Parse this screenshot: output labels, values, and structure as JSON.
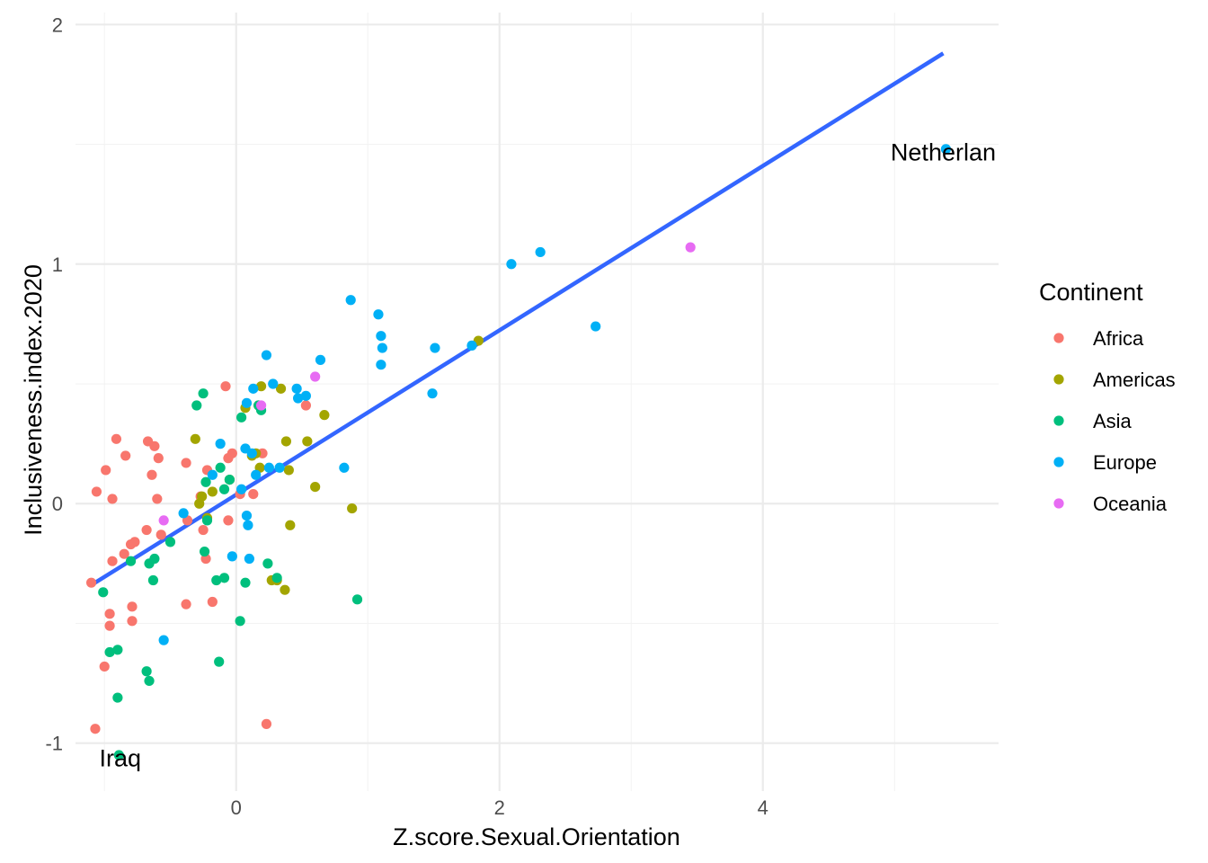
{
  "chart_data": {
    "type": "scatter",
    "title": "",
    "xlabel": "Z.score.Sexual.Orientation",
    "ylabel": "Inclusiveness.index.2020",
    "xlim": [
      -1.22,
      5.79
    ],
    "ylim": [
      -1.2,
      2.05
    ],
    "x_ticks": [
      0,
      2,
      4
    ],
    "x_tick_labels": [
      "0",
      "2",
      "4"
    ],
    "y_ticks": [
      -1,
      0,
      1,
      2
    ],
    "y_tick_labels": [
      "-1",
      "0",
      "1",
      "2"
    ],
    "grid": true,
    "legend": {
      "title": "Continent",
      "placement": "right",
      "entries": [
        "Africa",
        "Americas",
        "Asia",
        "Europe",
        "Oceania"
      ]
    },
    "colors": {
      "Africa": "#F8766D",
      "Americas": "#A3A500",
      "Asia": "#00BF7D",
      "Europe": "#00B0F6",
      "Oceania": "#E76BF3",
      "trend": "#3366FF"
    },
    "trend_line": {
      "x": [
        -1.1,
        5.37
      ],
      "y": [
        -0.34,
        1.88
      ]
    },
    "annotations": [
      {
        "text": "Netherlan",
        "x": 5.37,
        "y": 1.47
      },
      {
        "text": "Iraq",
        "x": -0.88,
        "y": -1.06
      }
    ],
    "series": [
      {
        "name": "Africa",
        "points": [
          [
            -1.1,
            -0.33
          ],
          [
            -1.07,
            -0.94
          ],
          [
            -1.06,
            0.05
          ],
          [
            -1.0,
            -0.68
          ],
          [
            -0.99,
            0.14
          ],
          [
            -0.96,
            -0.46
          ],
          [
            -0.96,
            -0.51
          ],
          [
            -0.94,
            -0.24
          ],
          [
            -0.94,
            0.02
          ],
          [
            -0.91,
            0.27
          ],
          [
            -0.85,
            -0.21
          ],
          [
            -0.84,
            0.2
          ],
          [
            -0.8,
            -0.17
          ],
          [
            -0.79,
            -0.43
          ],
          [
            -0.79,
            -0.49
          ],
          [
            -0.77,
            -0.16
          ],
          [
            -0.68,
            -0.11
          ],
          [
            -0.67,
            0.26
          ],
          [
            -0.64,
            0.12
          ],
          [
            -0.62,
            0.24
          ],
          [
            -0.6,
            0.02
          ],
          [
            -0.59,
            0.19
          ],
          [
            -0.57,
            -0.13
          ],
          [
            -0.38,
            0.17
          ],
          [
            -0.38,
            -0.42
          ],
          [
            -0.37,
            -0.07
          ],
          [
            -0.27,
            0.03
          ],
          [
            -0.25,
            -0.11
          ],
          [
            -0.23,
            -0.23
          ],
          [
            -0.22,
            0.14
          ],
          [
            -0.18,
            -0.41
          ],
          [
            -0.08,
            0.49
          ],
          [
            -0.06,
            -0.07
          ],
          [
            -0.06,
            0.19
          ],
          [
            -0.03,
            0.21
          ],
          [
            0.03,
            0.04
          ],
          [
            0.13,
            0.04
          ],
          [
            0.17,
            0.41
          ],
          [
            0.2,
            0.21
          ],
          [
            0.23,
            -0.92
          ],
          [
            0.53,
            0.41
          ]
        ]
      },
      {
        "name": "Americas",
        "points": [
          [
            -0.31,
            0.27
          ],
          [
            -0.28,
            0.0
          ],
          [
            -0.26,
            0.03
          ],
          [
            -0.22,
            -0.06
          ],
          [
            -0.18,
            0.05
          ],
          [
            -0.05,
            0.1
          ],
          [
            0.07,
            0.4
          ],
          [
            0.12,
            0.2
          ],
          [
            0.15,
            0.21
          ],
          [
            0.18,
            0.15
          ],
          [
            0.19,
            0.49
          ],
          [
            0.27,
            -0.32
          ],
          [
            0.31,
            -0.32
          ],
          [
            0.34,
            0.48
          ],
          [
            0.37,
            -0.36
          ],
          [
            0.38,
            0.26
          ],
          [
            0.4,
            0.14
          ],
          [
            0.41,
            -0.09
          ],
          [
            0.54,
            0.26
          ],
          [
            0.6,
            0.07
          ],
          [
            0.67,
            0.37
          ],
          [
            0.88,
            -0.02
          ],
          [
            1.84,
            0.68
          ]
        ]
      },
      {
        "name": "Asia",
        "points": [
          [
            -1.01,
            -0.37
          ],
          [
            -0.96,
            -0.62
          ],
          [
            -0.9,
            -0.61
          ],
          [
            -0.9,
            -0.81
          ],
          [
            -0.89,
            -1.05
          ],
          [
            -0.8,
            -0.24
          ],
          [
            -0.68,
            -0.7
          ],
          [
            -0.66,
            -0.74
          ],
          [
            -0.66,
            -0.25
          ],
          [
            -0.63,
            -0.32
          ],
          [
            -0.62,
            -0.23
          ],
          [
            -0.5,
            -0.16
          ],
          [
            -0.3,
            0.41
          ],
          [
            -0.25,
            0.46
          ],
          [
            -0.24,
            -0.2
          ],
          [
            -0.23,
            0.09
          ],
          [
            -0.22,
            -0.07
          ],
          [
            -0.15,
            -0.32
          ],
          [
            -0.13,
            -0.66
          ],
          [
            -0.12,
            0.15
          ],
          [
            -0.09,
            0.06
          ],
          [
            -0.09,
            -0.31
          ],
          [
            -0.05,
            0.1
          ],
          [
            0.03,
            -0.49
          ],
          [
            0.04,
            0.36
          ],
          [
            0.07,
            -0.33
          ],
          [
            0.17,
            0.41
          ],
          [
            0.19,
            0.39
          ],
          [
            0.24,
            -0.25
          ],
          [
            0.31,
            -0.31
          ],
          [
            0.92,
            -0.4
          ]
        ]
      },
      {
        "name": "Europe",
        "points": [
          [
            -0.4,
            -0.04
          ],
          [
            -0.55,
            -0.57
          ],
          [
            -0.18,
            0.12
          ],
          [
            -0.12,
            0.25
          ],
          [
            -0.03,
            -0.22
          ],
          [
            0.04,
            0.06
          ],
          [
            0.07,
            0.23
          ],
          [
            0.08,
            0.42
          ],
          [
            0.08,
            -0.05
          ],
          [
            0.09,
            -0.09
          ],
          [
            0.1,
            -0.23
          ],
          [
            0.12,
            0.21
          ],
          [
            0.13,
            0.48
          ],
          [
            0.15,
            0.12
          ],
          [
            0.23,
            0.62
          ],
          [
            0.25,
            0.15
          ],
          [
            0.28,
            0.5
          ],
          [
            0.33,
            0.15
          ],
          [
            0.46,
            0.48
          ],
          [
            0.47,
            0.44
          ],
          [
            0.53,
            0.45
          ],
          [
            0.64,
            0.6
          ],
          [
            0.82,
            0.15
          ],
          [
            0.87,
            0.85
          ],
          [
            1.08,
            0.79
          ],
          [
            1.1,
            0.7
          ],
          [
            1.11,
            0.65
          ],
          [
            1.1,
            0.58
          ],
          [
            1.49,
            0.46
          ],
          [
            1.51,
            0.65
          ],
          [
            1.79,
            0.66
          ],
          [
            2.09,
            1.0
          ],
          [
            2.31,
            1.05
          ],
          [
            2.73,
            0.74
          ],
          [
            5.39,
            1.48
          ]
        ]
      },
      {
        "name": "Oceania",
        "points": [
          [
            -0.55,
            -0.07
          ],
          [
            0.19,
            0.41
          ],
          [
            0.6,
            0.53
          ],
          [
            3.45,
            1.07
          ]
        ]
      }
    ]
  }
}
